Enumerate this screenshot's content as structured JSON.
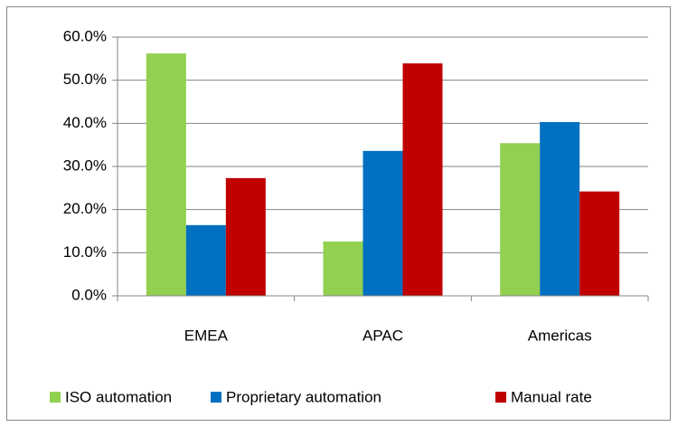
{
  "chart_data": {
    "type": "bar",
    "categories": [
      "EMEA",
      "APAC",
      "Americas"
    ],
    "series": [
      {
        "name": "ISO automation",
        "color": "#92d050",
        "values": [
          56.2,
          12.6,
          35.4
        ]
      },
      {
        "name": "Proprietary automation",
        "color": "#0070c0",
        "values": [
          16.4,
          33.6,
          40.3
        ]
      },
      {
        "name": "Manual rate",
        "color": "#c00000",
        "values": [
          27.3,
          53.9,
          24.2
        ]
      }
    ],
    "ylim": [
      0,
      60
    ],
    "yticks": [
      {
        "value": 0,
        "label": "0.0%"
      },
      {
        "value": 10,
        "label": "10.0%"
      },
      {
        "value": 20,
        "label": "20.0%"
      },
      {
        "value": 30,
        "label": "30.0%"
      },
      {
        "value": 40,
        "label": "40.0%"
      },
      {
        "value": 50,
        "label": "50.0%"
      },
      {
        "value": 60,
        "label": "60.0%"
      }
    ],
    "grid": true,
    "legend": "bottom"
  }
}
